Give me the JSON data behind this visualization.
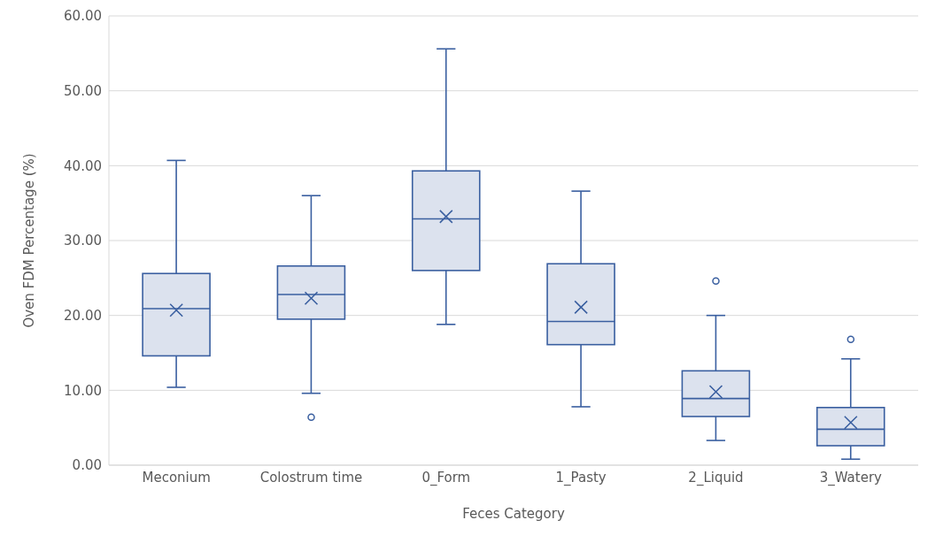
{
  "chart_data": {
    "type": "box",
    "xlabel": "Feces Category",
    "ylabel": "Oven FDM Percentage (%)",
    "categories": [
      "Meconium",
      "Colostrum time",
      "0_Form",
      "1_Pasty",
      "2_Liquid",
      "3_Watery"
    ],
    "color": "#3a5fa0",
    "boxes": [
      {
        "low": 10.4,
        "q1": 14.6,
        "median": 20.9,
        "q3": 25.6,
        "high": 40.7,
        "mean": 20.7
      },
      {
        "low": 9.6,
        "q1": 19.5,
        "median": 22.8,
        "q3": 26.6,
        "high": 36.0,
        "mean": 22.3,
        "outliers": [
          6.4
        ]
      },
      {
        "low": 18.8,
        "q1": 26.0,
        "median": 32.9,
        "q3": 39.3,
        "high": 55.6,
        "mean": 33.2
      },
      {
        "low": 7.8,
        "q1": 16.1,
        "median": 19.2,
        "q3": 26.9,
        "high": 36.6,
        "mean": 21.1
      },
      {
        "low": 3.3,
        "q1": 6.5,
        "median": 8.9,
        "q3": 12.6,
        "high": 20.0,
        "mean": 9.8,
        "outliers": [
          24.6
        ]
      },
      {
        "low": 0.8,
        "q1": 2.6,
        "median": 4.8,
        "q3": 7.7,
        "high": 14.2,
        "mean": 5.7,
        "outliers": [
          16.8
        ]
      }
    ],
    "ylim": [
      0,
      60
    ],
    "yticks": [
      {
        "value": 0,
        "label": "0.00"
      },
      {
        "value": 10,
        "label": "10.00"
      },
      {
        "value": 20,
        "label": "20.00"
      },
      {
        "value": 30,
        "label": "30.00"
      },
      {
        "value": 40,
        "label": "40.00"
      },
      {
        "value": 50,
        "label": "50.00"
      },
      {
        "value": 60,
        "label": "60.00"
      }
    ],
    "grid": "y"
  }
}
